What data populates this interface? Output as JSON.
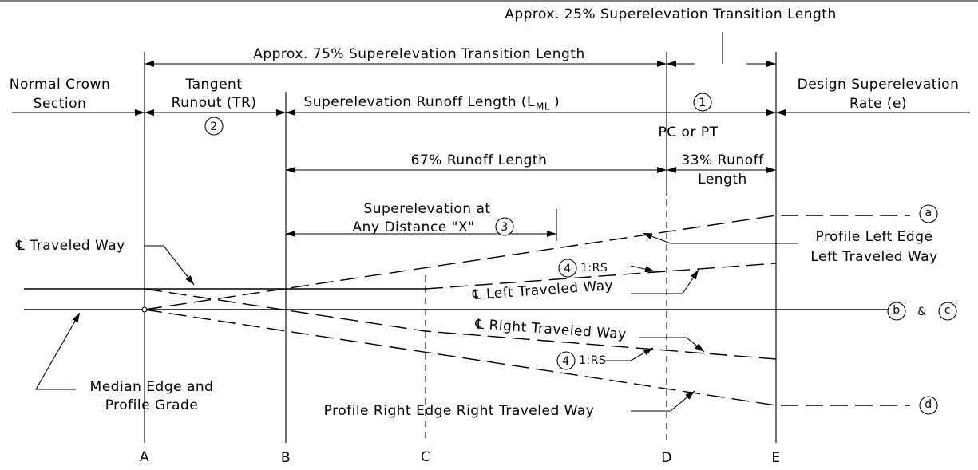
{
  "dimensions": {
    "transition_25": "Approx. 25% Superelevation Transition Length",
    "transition_75": "Approx. 75% Superelevation Transition Length",
    "runoff_length": "Superelevation Runoff Length (L",
    "runoff_sub": "ML",
    "runoff_close": ")",
    "runoff_67": "67% Runoff Length",
    "runoff_33": [
      "33% Runoff",
      "Length"
    ],
    "distance_x": [
      "Superelevation at",
      "Any Distance \"X\""
    ]
  },
  "sections": {
    "normal_crown": [
      "Normal Crown",
      "Section"
    ],
    "tangent_runout": [
      "Tangent",
      "Runout (TR)"
    ],
    "design_rate": [
      "Design Superelevation",
      "Rate (e)"
    ],
    "pc_pt": "PC or PT"
  },
  "profiles": {
    "cl_traveled_way": "℄ Traveled Way",
    "left_edge": [
      "Profile Left Edge",
      "Left Traveled Way"
    ],
    "cl_left": "℄ Left Traveled Way",
    "cl_right": "℄ Right Traveled Way",
    "median": [
      "Median Edge and",
      "Profile Grade"
    ],
    "right_edge": "Profile Right Edge Right Traveled Way",
    "slope_upper": "1:RS",
    "slope_lower": "1:RS",
    "and_sep": "&"
  },
  "markers": {
    "n1": "1",
    "n2": "2",
    "n3": "3",
    "n4_upper": "4",
    "n4_lower": "4",
    "a": "a",
    "b": "b",
    "c": "c",
    "d": "d"
  },
  "stations": [
    "A",
    "B",
    "C",
    "D",
    "E"
  ]
}
